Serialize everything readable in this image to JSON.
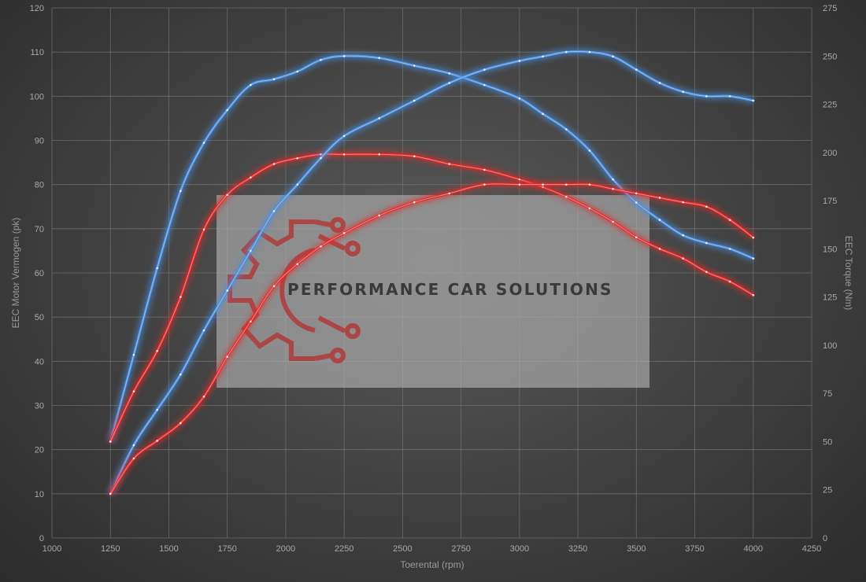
{
  "chart_data": {
    "type": "line",
    "xlabel": "Toerental (rpm)",
    "ylabel_left": "EEC Motor Vermogen (pk)",
    "ylabel_right": "EEC Torque (Nm)",
    "xlim": [
      1000,
      4250
    ],
    "ylim_left": [
      0,
      120
    ],
    "ylim_right": [
      0,
      275
    ],
    "x_ticks": [
      "1000",
      "1250",
      "1500",
      "1750",
      "2000",
      "2250",
      "2500",
      "2750",
      "3000",
      "3250",
      "3500",
      "3750",
      "4000",
      "4250"
    ],
    "y_left_ticks": [
      "0",
      "10",
      "20",
      "30",
      "40",
      "50",
      "60",
      "70",
      "80",
      "90",
      "100",
      "110",
      "120"
    ],
    "y_right_ticks": [
      "0",
      "25",
      "50",
      "75",
      "100",
      "125",
      "150",
      "175",
      "200",
      "225",
      "250",
      "275"
    ],
    "grid": true,
    "series": [
      {
        "axis": "right",
        "color": "#4a8fe0",
        "points": [
          [
            1250,
            50
          ],
          [
            1350,
            95
          ],
          [
            1450,
            140
          ],
          [
            1550,
            180
          ],
          [
            1650,
            205
          ],
          [
            1750,
            222
          ],
          [
            1850,
            235
          ],
          [
            1950,
            238
          ],
          [
            2050,
            242
          ],
          [
            2150,
            248
          ],
          [
            2250,
            250
          ],
          [
            2400,
            249
          ],
          [
            2550,
            245
          ],
          [
            2700,
            241
          ],
          [
            2850,
            235
          ],
          [
            3000,
            228
          ],
          [
            3100,
            220
          ],
          [
            3200,
            212
          ],
          [
            3300,
            201
          ],
          [
            3400,
            186
          ],
          [
            3500,
            174
          ],
          [
            3600,
            165
          ],
          [
            3700,
            157
          ],
          [
            3800,
            153
          ],
          [
            3900,
            150
          ],
          [
            4000,
            145
          ]
        ]
      },
      {
        "axis": "right",
        "color": "#e02a2a",
        "points": [
          [
            1250,
            50
          ],
          [
            1350,
            76
          ],
          [
            1450,
            97
          ],
          [
            1550,
            125
          ],
          [
            1650,
            160
          ],
          [
            1750,
            178
          ],
          [
            1850,
            187
          ],
          [
            1950,
            194
          ],
          [
            2050,
            197
          ],
          [
            2150,
            199
          ],
          [
            2250,
            199
          ],
          [
            2400,
            199
          ],
          [
            2550,
            198
          ],
          [
            2700,
            194
          ],
          [
            2850,
            191
          ],
          [
            3000,
            186
          ],
          [
            3100,
            182
          ],
          [
            3200,
            177
          ],
          [
            3300,
            171
          ],
          [
            3400,
            164
          ],
          [
            3500,
            156
          ],
          [
            3600,
            150
          ],
          [
            3700,
            145
          ],
          [
            3800,
            138
          ],
          [
            3900,
            133
          ],
          [
            4000,
            126
          ]
        ]
      },
      {
        "axis": "left",
        "color": "#4a8fe0",
        "points": [
          [
            1250,
            10
          ],
          [
            1350,
            21
          ],
          [
            1450,
            29
          ],
          [
            1550,
            37
          ],
          [
            1650,
            47
          ],
          [
            1750,
            56
          ],
          [
            1850,
            65
          ],
          [
            1950,
            74
          ],
          [
            2050,
            80
          ],
          [
            2150,
            86
          ],
          [
            2250,
            91
          ],
          [
            2400,
            95
          ],
          [
            2550,
            99
          ],
          [
            2700,
            103
          ],
          [
            2850,
            106
          ],
          [
            3000,
            108
          ],
          [
            3100,
            109
          ],
          [
            3200,
            110
          ],
          [
            3300,
            110
          ],
          [
            3400,
            109
          ],
          [
            3500,
            106
          ],
          [
            3600,
            103
          ],
          [
            3700,
            101
          ],
          [
            3800,
            100
          ],
          [
            3900,
            100
          ],
          [
            4000,
            99
          ]
        ]
      },
      {
        "axis": "left",
        "color": "#e02a2a",
        "points": [
          [
            1250,
            10
          ],
          [
            1350,
            18
          ],
          [
            1450,
            22
          ],
          [
            1550,
            26
          ],
          [
            1650,
            32
          ],
          [
            1750,
            41
          ],
          [
            1850,
            49
          ],
          [
            1950,
            57
          ],
          [
            2050,
            62
          ],
          [
            2150,
            66
          ],
          [
            2250,
            69
          ],
          [
            2400,
            73
          ],
          [
            2550,
            76
          ],
          [
            2700,
            78
          ],
          [
            2850,
            80
          ],
          [
            3000,
            80
          ],
          [
            3100,
            80
          ],
          [
            3200,
            80
          ],
          [
            3300,
            80
          ],
          [
            3400,
            79
          ],
          [
            3500,
            78
          ],
          [
            3600,
            77
          ],
          [
            3700,
            76
          ],
          [
            3800,
            75
          ],
          [
            3900,
            72
          ],
          [
            4000,
            68
          ]
        ]
      }
    ]
  },
  "watermark": {
    "text": "PERFORMANCE CAR SOLUTIONS",
    "logo_color": "#b03a3a"
  }
}
